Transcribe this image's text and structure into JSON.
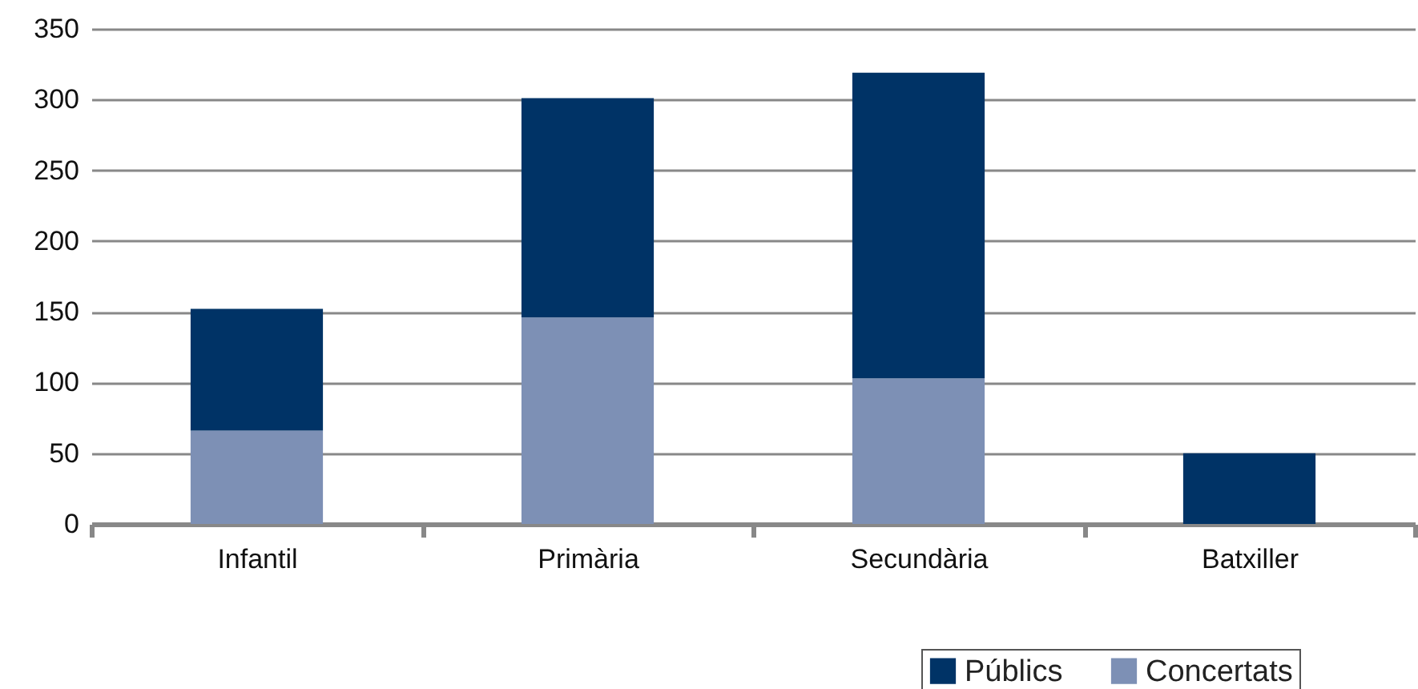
{
  "chart_data": {
    "type": "bar",
    "stacked": true,
    "categories": [
      "Infantil",
      "Primària",
      "Secundària",
      "Batxiller"
    ],
    "series": [
      {
        "name": "Concertats",
        "color": "#7d90b5",
        "values": [
          66,
          146,
          103,
          0
        ]
      },
      {
        "name": "Públics",
        "color": "#003366",
        "values": [
          86,
          155,
          216,
          50
        ]
      }
    ],
    "ylim": [
      0,
      350
    ],
    "yticks": [
      0,
      50,
      100,
      150,
      200,
      250,
      300,
      350
    ],
    "grid": "y",
    "legend": "bottom right"
  }
}
